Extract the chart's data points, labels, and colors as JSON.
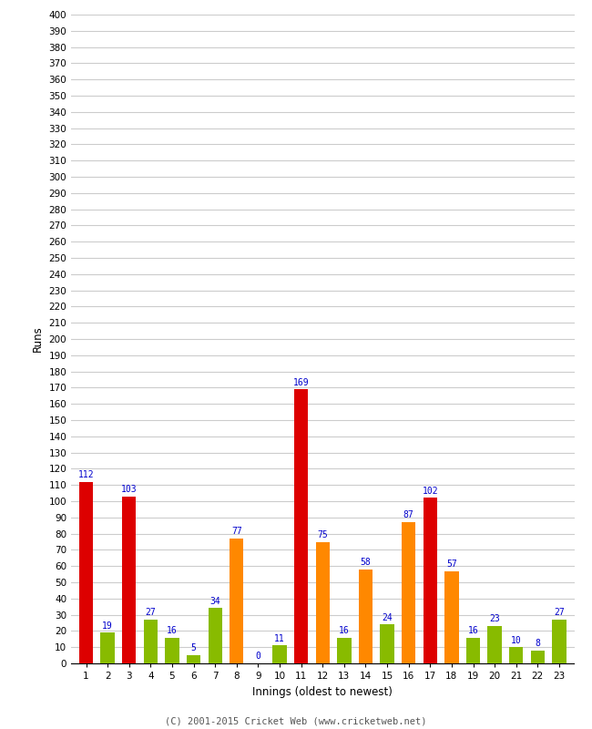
{
  "xlabel": "Innings (oldest to newest)",
  "ylabel": "Runs",
  "innings": [
    1,
    2,
    3,
    4,
    5,
    6,
    7,
    8,
    9,
    10,
    11,
    12,
    13,
    14,
    15,
    16,
    17,
    18,
    19,
    20,
    21,
    22,
    23
  ],
  "values": [
    112,
    19,
    103,
    27,
    16,
    5,
    34,
    77,
    0,
    11,
    169,
    75,
    16,
    58,
    24,
    87,
    102,
    57,
    16,
    23,
    10,
    8,
    27
  ],
  "colors": [
    "#dd0000",
    "#88bb00",
    "#dd0000",
    "#88bb00",
    "#88bb00",
    "#88bb00",
    "#88bb00",
    "#ff8800",
    "#88bb00",
    "#88bb00",
    "#dd0000",
    "#ff8800",
    "#88bb00",
    "#ff8800",
    "#88bb00",
    "#ff8800",
    "#dd0000",
    "#ff8800",
    "#88bb00",
    "#88bb00",
    "#88bb00",
    "#88bb00",
    "#88bb00"
  ],
  "ylim": [
    0,
    400
  ],
  "yticks": [
    0,
    10,
    20,
    30,
    40,
    50,
    60,
    70,
    80,
    90,
    100,
    110,
    120,
    130,
    140,
    150,
    160,
    170,
    180,
    190,
    200,
    210,
    220,
    230,
    240,
    250,
    260,
    270,
    280,
    290,
    300,
    310,
    320,
    330,
    340,
    350,
    360,
    370,
    380,
    390,
    400
  ],
  "footer": "(C) 2001-2015 Cricket Web (www.cricketweb.net)",
  "label_color": "#0000cc",
  "grid_color": "#cccccc",
  "bg_color": "#ffffff",
  "bar_width": 0.65
}
